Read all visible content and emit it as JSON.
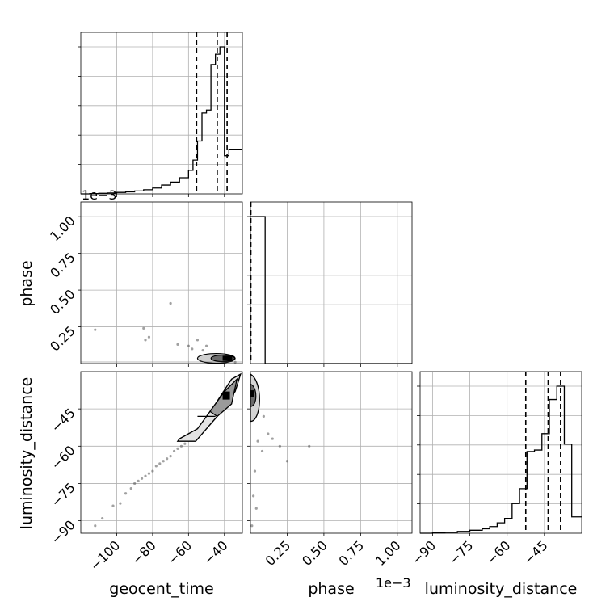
{
  "chart_data": {
    "type": "corner",
    "parameters": [
      "geocent_time",
      "phase",
      "luminosity_distance"
    ],
    "axes": {
      "geocent_time": {
        "label": "geocent_time",
        "range": [
          -120,
          -30
        ],
        "ticks": [
          -100,
          -80,
          -60,
          -40
        ],
        "tick_labels": [
          "−100",
          "−80",
          "−60",
          "−40"
        ]
      },
      "phase": {
        "label": "phase",
        "range": [
          0,
          0.0011
        ],
        "ticks": [
          0.00025,
          0.0005,
          0.00075,
          0.001
        ],
        "tick_labels": [
          "0.25",
          "0.50",
          "0.75",
          "1.00"
        ],
        "offset_text": "1e−3"
      },
      "luminosity_distance": {
        "label": "luminosity_distance",
        "range": [
          -95,
          -30
        ],
        "ticks": [
          -90,
          -75,
          -60,
          -45
        ],
        "tick_labels": [
          "−90",
          "−75",
          "−60",
          "−45"
        ]
      }
    },
    "histograms": {
      "geocent_time": {
        "bin_edges": [
          -120,
          -115,
          -110,
          -105,
          -100,
          -95,
          -90,
          -85,
          -80,
          -75,
          -70,
          -65,
          -60,
          -57.5,
          -55,
          -52.5,
          -50,
          -47.5,
          -45,
          -42.5,
          -40,
          -37.5,
          -35,
          -30
        ],
        "counts": [
          0,
          0.002,
          0.004,
          0.006,
          0.01,
          0.014,
          0.02,
          0.028,
          0.04,
          0.06,
          0.08,
          0.11,
          0.16,
          0.23,
          0.36,
          0.55,
          0.57,
          0.88,
          0.95,
          1.0,
          0.26,
          0.3,
          0.3
        ],
        "quantiles": [
          -55.5,
          -44,
          -38.5
        ]
      },
      "phase": {
        "bin_edges": [
          0,
          2.5e-05,
          5e-05,
          7.5e-05,
          0.0001,
          0.0011
        ],
        "counts": [
          1.0,
          1.0,
          1.0,
          1.0,
          0
        ],
        "quantiles": [
          3e-06
        ]
      },
      "luminosity_distance": {
        "bin_edges": [
          -95,
          -90,
          -85,
          -80,
          -75,
          -70,
          -67,
          -64,
          -61,
          -58,
          -55,
          -52,
          -49,
          -46,
          -43,
          -40,
          -37,
          -34,
          -30
        ],
        "counts": [
          0,
          0.002,
          0.006,
          0.012,
          0.02,
          0.03,
          0.045,
          0.07,
          0.1,
          0.2,
          0.3,
          0.55,
          0.56,
          0.67,
          0.9,
          0.99,
          0.6,
          0.11
        ],
        "quantiles": [
          -52.5,
          -43.5,
          -38.5
        ]
      }
    },
    "scatter": {
      "phase_vs_geocent_time": {
        "x": [
          -112,
          -85,
          -84,
          -82,
          -70,
          -66,
          -60,
          -58,
          -55,
          -52,
          -50,
          -48,
          -45,
          -42,
          -40,
          -38,
          -36,
          -34
        ],
        "y": [
          0.00023,
          0.00024,
          0.00016,
          0.00018,
          0.00041,
          0.00013,
          0.00012,
          0.0001,
          0.00016,
          9e-05,
          0.00012,
          6e-05,
          4e-05,
          2e-05,
          1e-05,
          4e-05,
          2e-05,
          1e-05
        ]
      },
      "luminosity_distance_vs_geocent_time": {
        "x": [
          -112,
          -108,
          -102,
          -98,
          -95,
          -92,
          -90,
          -88,
          -86,
          -84,
          -82,
          -80,
          -78,
          -76,
          -74,
          -72,
          -70,
          -68,
          -66,
          -64,
          -62,
          -60,
          -58,
          -56,
          -54,
          -52,
          -50,
          -48,
          -46,
          -44,
          -42,
          -40,
          -38,
          -36,
          -34
        ],
        "y": [
          -92,
          -89,
          -84,
          -83,
          -79,
          -77,
          -75,
          -74,
          -73,
          -72,
          -71,
          -70,
          -68,
          -67,
          -66,
          -65,
          -64,
          -62,
          -61,
          -60,
          -59,
          -57,
          -56,
          -55,
          -54,
          -52,
          -50,
          -49,
          -47,
          -45,
          -43,
          -41,
          -39,
          -37,
          -35
        ]
      },
      "luminosity_distance_vs_phase": {
        "x": [
          1e-05,
          2e-05,
          3e-05,
          5e-05,
          8e-05,
          0.00012,
          0.00015,
          0.0002,
          0.00025,
          0.0004,
          9e-05,
          4e-05
        ],
        "y": [
          -92,
          -80,
          -70,
          -58,
          -62,
          -55,
          -57,
          -60,
          -66,
          -60,
          -48,
          -85
        ]
      }
    },
    "grid": true,
    "legend": "none"
  }
}
